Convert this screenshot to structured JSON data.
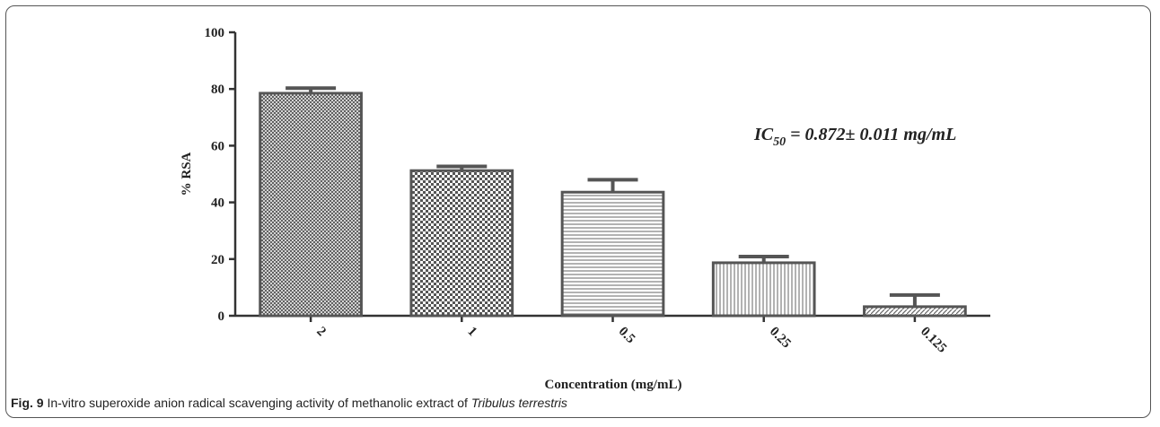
{
  "chart_data": {
    "type": "bar",
    "categories": [
      "2",
      "1",
      "0.5",
      "0.25",
      "0.125"
    ],
    "values": [
      78.5,
      51.2,
      43.6,
      18.7,
      3.2
    ],
    "errors": [
      1.8,
      1.5,
      4.4,
      2.2,
      4.1
    ],
    "color": "#555555",
    "ylim": [
      0,
      100
    ],
    "yticks": [
      0,
      20,
      40,
      60,
      80,
      100
    ],
    "xlabel": "Concentration (mg/mL)",
    "ylabel": "% RSA",
    "annotation": {
      "main": "IC",
      "sub": "50",
      "rest": " = 0.872± 0.011 mg/mL"
    }
  },
  "caption": {
    "label": "Fig. 9",
    "text": " In-vitro superoxide anion radical scavenging activity of methanolic extract of ",
    "species": "Tribulus terrestris"
  }
}
